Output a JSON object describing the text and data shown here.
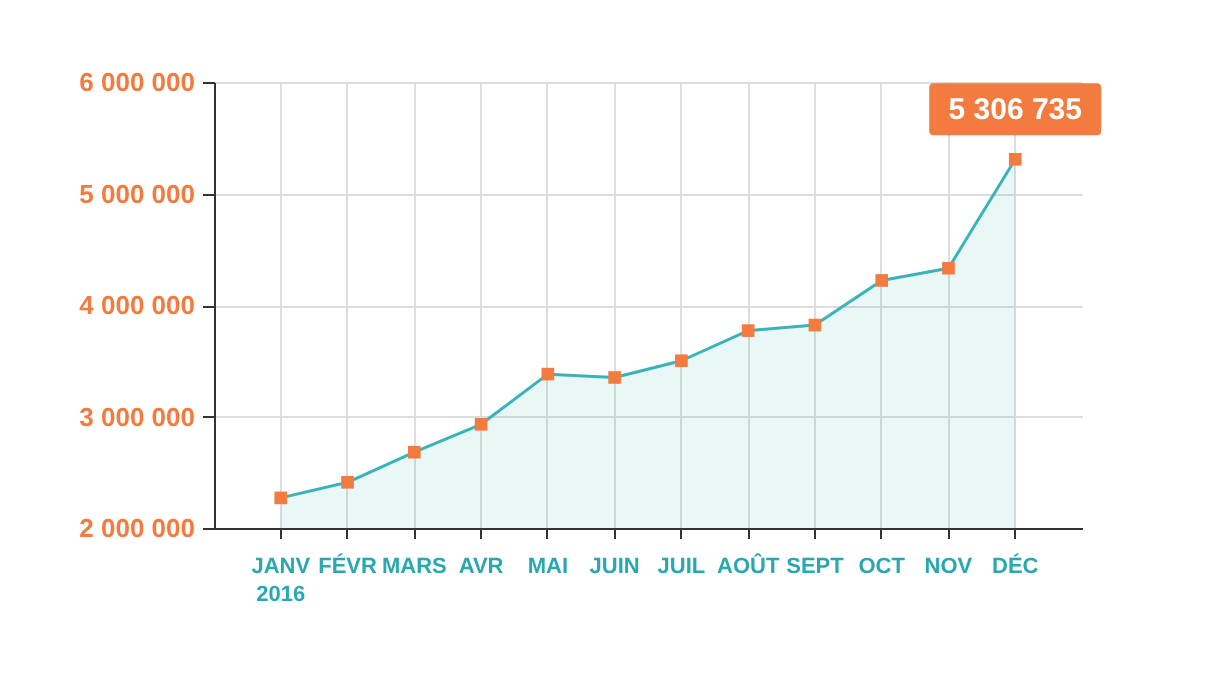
{
  "chart_data": {
    "type": "area",
    "categories": [
      "JANV\n2016",
      "FÉVR",
      "MARS",
      "AVR",
      "MAI",
      "JUIN",
      "JUIL",
      "AOÛT",
      "SEPT",
      "OCT",
      "NOV",
      "DÉC"
    ],
    "series": [
      {
        "color": "#3ab3b8",
        "values": [
          2270000,
          2410000,
          2680000,
          2930000,
          3380000,
          3350000,
          3500000,
          3770000,
          3820000,
          4220000,
          4330000,
          5306735
        ]
      }
    ],
    "ylim": [
      2000000,
      6000000
    ],
    "yticks": [
      {
        "value": 2000000,
        "label": "2 000 000"
      },
      {
        "value": 3000000,
        "label": "3 000 000"
      },
      {
        "value": 4000000,
        "label": "4 000 000"
      },
      {
        "value": 5000000,
        "label": "5 000 000"
      },
      {
        "value": 6000000,
        "label": "6 000 000"
      }
    ],
    "grid": true,
    "marker": "square",
    "annotations": [
      {
        "text": "5 306 735",
        "x": "DÉC",
        "y": 5306735
      }
    ]
  }
}
